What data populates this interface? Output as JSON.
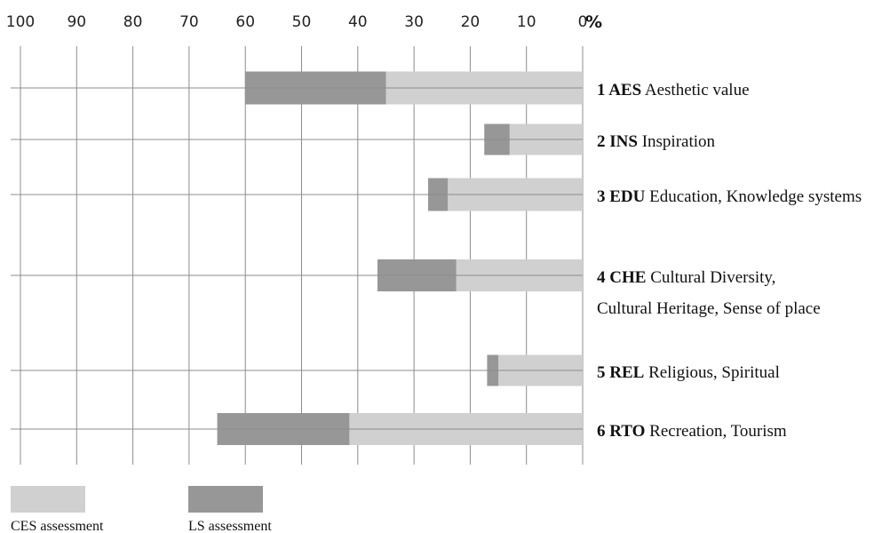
{
  "chart_data": {
    "type": "bar",
    "orientation": "horizontal-reversed",
    "x_unit": "%",
    "xlim": [
      0,
      100
    ],
    "x_ticks": [
      "100",
      "90",
      "80",
      "70",
      "60",
      "50",
      "40",
      "30",
      "20",
      "10",
      "0"
    ],
    "grid": true,
    "legend_position": "bottom-left",
    "categories": [
      {
        "number": "1",
        "code": "AES",
        "name": "Aesthetic value",
        "name_line2": ""
      },
      {
        "number": "2",
        "code": "INS",
        "name": "Inspiration",
        "name_line2": ""
      },
      {
        "number": "3",
        "code": "EDU",
        "name": "Education, Knowledge systems",
        "name_line2": ""
      },
      {
        "number": "4",
        "code": "CHE",
        "name": "Cultural Diversity,",
        "name_line2": "Cultural Heritage, Sense of place"
      },
      {
        "number": "5",
        "code": "REL",
        "name": "Religious, Spiritual",
        "name_line2": ""
      },
      {
        "number": "6",
        "code": "RTO",
        "name": "Recreation, Tourism",
        "name_line2": ""
      }
    ],
    "series": [
      {
        "name": "CES assessment",
        "color": "#d0d0d0",
        "values": [
          35,
          13,
          24,
          22.5,
          15,
          41.5
        ]
      },
      {
        "name": "LS assessment",
        "color": "#979797",
        "values": [
          60,
          17.5,
          27.5,
          36.5,
          17,
          65
        ]
      }
    ]
  }
}
